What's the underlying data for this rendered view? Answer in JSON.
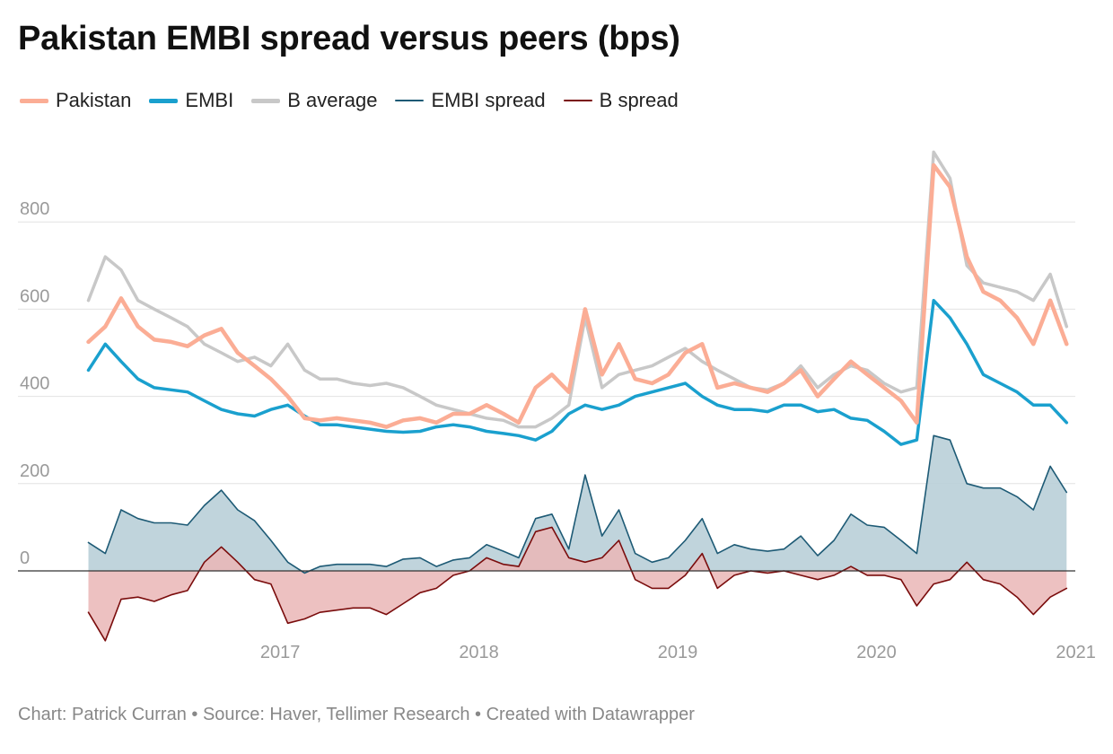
{
  "chart_data": {
    "type": "line",
    "title": "Pakistan EMBI spread versus peers (bps)",
    "x_range": [
      "2016-01-01",
      "2020-12-31"
    ],
    "x_ticks": [
      "2017",
      "2018",
      "2019",
      "2020",
      "2021"
    ],
    "y_range": [
      -140,
      1000
    ],
    "y_ticks": [
      "0",
      "200",
      "400",
      "600",
      "800"
    ],
    "grid": "horizontal",
    "legend_position": "top-left",
    "colors": {
      "pakistan": "#fbad95",
      "embi": "#1aa0ce",
      "b_average": "#c8c8c8",
      "embi_spread": "#1d5a75",
      "embi_spread_fill": "#b9cfd8",
      "b_spread": "#7a0c0c",
      "b_spread_fill": "#eab6b6"
    },
    "legend": [
      {
        "label": "Pakistan",
        "key": "pakistan"
      },
      {
        "label": "EMBI",
        "key": "embi"
      },
      {
        "label": "B average",
        "key": "b_average"
      },
      {
        "label": "EMBI spread",
        "key": "embi_spread"
      },
      {
        "label": "B spread",
        "key": "b_spread"
      }
    ],
    "x": [
      "2016-01",
      "2016-02",
      "2016-03",
      "2016-04",
      "2016-05",
      "2016-06",
      "2016-07",
      "2016-08",
      "2016-09",
      "2016-10",
      "2016-11",
      "2016-12",
      "2017-01",
      "2017-02",
      "2017-03",
      "2017-04",
      "2017-05",
      "2017-06",
      "2017-07",
      "2017-08",
      "2017-09",
      "2017-10",
      "2017-11",
      "2017-12",
      "2018-01",
      "2018-02",
      "2018-03",
      "2018-04",
      "2018-05",
      "2018-06",
      "2018-07",
      "2018-08",
      "2018-09",
      "2018-10",
      "2018-11",
      "2018-12",
      "2019-01",
      "2019-02",
      "2019-03",
      "2019-04",
      "2019-05",
      "2019-06",
      "2019-07",
      "2019-08",
      "2019-09",
      "2019-10",
      "2019-11",
      "2019-12",
      "2020-01",
      "2020-02",
      "2020-03",
      "2020-04",
      "2020-05",
      "2020-06",
      "2020-07",
      "2020-08",
      "2020-09",
      "2020-10",
      "2020-11",
      "2020-12"
    ],
    "series": [
      {
        "name": "Pakistan",
        "key": "pakistan",
        "values": [
          525,
          560,
          625,
          560,
          530,
          525,
          515,
          540,
          555,
          500,
          470,
          440,
          400,
          350,
          345,
          350,
          345,
          340,
          330,
          345,
          350,
          340,
          360,
          360,
          380,
          360,
          340,
          420,
          450,
          410,
          600,
          450,
          520,
          440,
          430,
          450,
          500,
          520,
          420,
          430,
          420,
          410,
          430,
          460,
          400,
          440,
          480,
          450,
          420,
          390,
          340,
          930,
          880,
          720,
          640,
          620,
          580,
          520,
          620,
          520
        ]
      },
      {
        "name": "EMBI",
        "key": "embi",
        "values": [
          460,
          520,
          480,
          440,
          420,
          415,
          410,
          390,
          370,
          360,
          355,
          370,
          380,
          355,
          335,
          335,
          330,
          325,
          320,
          318,
          320,
          330,
          335,
          330,
          320,
          315,
          310,
          300,
          320,
          360,
          380,
          370,
          380,
          400,
          410,
          420,
          430,
          400,
          380,
          370,
          370,
          365,
          380,
          380,
          365,
          370,
          350,
          345,
          320,
          290,
          300,
          620,
          580,
          520,
          450,
          430,
          410,
          380,
          380,
          340
        ]
      },
      {
        "name": "B average",
        "key": "b_average",
        "values": [
          620,
          720,
          690,
          620,
          600,
          580,
          560,
          520,
          500,
          480,
          490,
          470,
          520,
          460,
          440,
          440,
          430,
          425,
          430,
          420,
          400,
          380,
          370,
          360,
          350,
          345,
          330,
          330,
          350,
          380,
          580,
          420,
          450,
          460,
          470,
          490,
          510,
          480,
          460,
          440,
          420,
          415,
          430,
          470,
          420,
          450,
          470,
          460,
          430,
          410,
          420,
          960,
          900,
          700,
          660,
          650,
          640,
          620,
          680,
          560
        ]
      },
      {
        "name": "EMBI spread",
        "key": "embi_spread",
        "values": [
          65,
          40,
          140,
          120,
          110,
          110,
          105,
          150,
          185,
          140,
          115,
          70,
          20,
          -5,
          10,
          15,
          15,
          15,
          10,
          27,
          30,
          10,
          25,
          30,
          60,
          45,
          30,
          120,
          130,
          50,
          220,
          80,
          140,
          40,
          20,
          30,
          70,
          120,
          40,
          60,
          50,
          45,
          50,
          80,
          35,
          70,
          130,
          105,
          100,
          70,
          40,
          310,
          300,
          200,
          190,
          190,
          170,
          140,
          240,
          180
        ]
      },
      {
        "name": "B spread",
        "key": "b_spread",
        "values": [
          -95,
          -160,
          -65,
          -60,
          -70,
          -55,
          -45,
          20,
          55,
          20,
          -20,
          -30,
          -120,
          -110,
          -95,
          -90,
          -85,
          -85,
          -100,
          -75,
          -50,
          -40,
          -10,
          0,
          30,
          15,
          10,
          90,
          100,
          30,
          20,
          30,
          70,
          -20,
          -40,
          -40,
          -10,
          40,
          -40,
          -10,
          0,
          -5,
          0,
          -10,
          -20,
          -10,
          10,
          -10,
          -10,
          -20,
          -80,
          -30,
          -20,
          20,
          -20,
          -30,
          -60,
          -100,
          -60,
          -40
        ]
      }
    ]
  }
}
